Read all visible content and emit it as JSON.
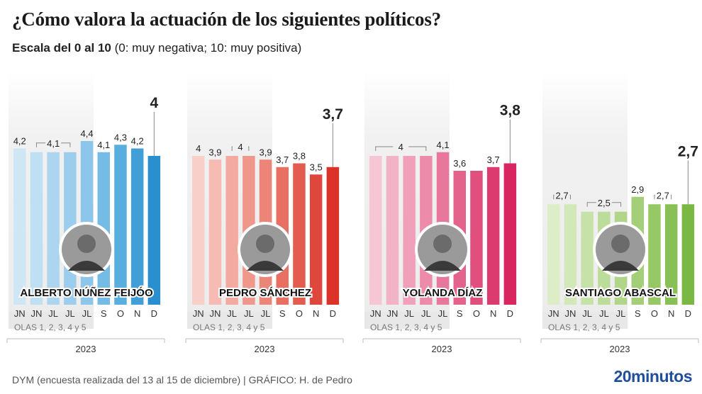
{
  "header": {
    "title": "¿Cómo valora la actuación de los siguientes políticos?",
    "subtitle_bold": "Escala del 0 al 10",
    "subtitle_rest": " (0: muy negativa; 10: muy positiva)"
  },
  "footer": {
    "source": "DYM (encuesta realizada del 13 al 15 de diciembre)   |  GRÁFICO: H. de Pedro",
    "brand": "20minutos"
  },
  "chart_data": [
    {
      "type": "bar",
      "name": "ALBERTO NÚÑEZ FEIJÓO",
      "categories": [
        "JN",
        "JN",
        "JL",
        "JL",
        "JL",
        "S",
        "O",
        "N",
        "D"
      ],
      "values": [
        4.2,
        4.1,
        4.1,
        4.1,
        4.4,
        4.1,
        4.3,
        4.2,
        4.0
      ],
      "labels": [
        {
          "text": "4,2",
          "from": 0,
          "to": 0
        },
        {
          "text": "4,1",
          "from": 1,
          "to": 3
        },
        {
          "text": "4,4",
          "from": 4,
          "to": 4
        },
        {
          "text": "4,1",
          "from": 5,
          "to": 5
        },
        {
          "text": "4,3",
          "from": 6,
          "to": 6
        },
        {
          "text": "4,2",
          "from": 7,
          "to": 7
        }
      ],
      "latest_label": "4",
      "waves_label": "OLAS 1, 2, 3, 4 y 5",
      "year": "2023",
      "colors": [
        "#cfe6f5",
        "#bfdff2",
        "#acd6ef",
        "#9ccdec",
        "#8cc6ea",
        "#74bce6",
        "#59aee0",
        "#419fd8",
        "#2a8fcf"
      ],
      "ylim": [
        0,
        10
      ]
    },
    {
      "type": "bar",
      "name": "PEDRO SÁNCHEZ",
      "categories": [
        "JN",
        "JN",
        "JL",
        "JL",
        "JL",
        "S",
        "O",
        "N",
        "D"
      ],
      "values": [
        4.0,
        3.9,
        4.0,
        4.0,
        3.9,
        3.7,
        3.8,
        3.5,
        3.7
      ],
      "labels": [
        {
          "text": "4",
          "from": 0,
          "to": 0
        },
        {
          "text": "3,9",
          "from": 1,
          "to": 1
        },
        {
          "text": "4",
          "from": 2,
          "to": 3
        },
        {
          "text": "3,9",
          "from": 4,
          "to": 4
        },
        {
          "text": "3,7",
          "from": 5,
          "to": 5
        },
        {
          "text": "3,8",
          "from": 6,
          "to": 6
        },
        {
          "text": "3,5",
          "from": 7,
          "to": 7
        }
      ],
      "latest_label": "3,7",
      "waves_label": "OLAS 1, 2, 3, 4 y 5",
      "year": "2023",
      "colors": [
        "#f8cfc9",
        "#f6bcb4",
        "#f3aaa0",
        "#f0978c",
        "#ec8577",
        "#e87062",
        "#e45b4f",
        "#e0473c",
        "#db3229"
      ],
      "ylim": [
        0,
        10
      ]
    },
    {
      "type": "bar",
      "name": "YOLANDA DÍAZ",
      "categories": [
        "JN",
        "JN",
        "JL",
        "JL",
        "JL",
        "S",
        "O",
        "N",
        "D"
      ],
      "values": [
        4.0,
        4.0,
        4.0,
        4.0,
        4.1,
        3.6,
        3.6,
        3.7,
        3.8
      ],
      "labels": [
        {
          "text": "4",
          "from": 0,
          "to": 3
        },
        {
          "text": "4,1",
          "from": 4,
          "to": 4
        },
        {
          "text": "3,6",
          "from": 5,
          "to": 5
        },
        {
          "text": "0",
          "from": 6,
          "to": 6,
          "hidden": true
        },
        {
          "text": "3,7",
          "from": 7,
          "to": 7
        }
      ],
      "latest_label": "3,8",
      "waves_label": "OLAS 1, 2, 3, 4 y 5",
      "year": "2023",
      "colors": [
        "#f6c6d5",
        "#f3b3c7",
        "#f0a0b8",
        "#ec8caa",
        "#e8789b",
        "#e4638c",
        "#e04f7e",
        "#dc3b6f",
        "#d82760"
      ],
      "ylim": [
        0,
        10
      ]
    },
    {
      "type": "bar",
      "name": "SANTIAGO ABASCAL",
      "categories": [
        "JN",
        "JN",
        "JL",
        "JL",
        "JL",
        "S",
        "O",
        "N",
        "D"
      ],
      "values": [
        2.7,
        2.7,
        2.5,
        2.5,
        2.5,
        2.9,
        2.7,
        2.7,
        2.7
      ],
      "labels": [
        {
          "text": "2,7",
          "from": 0,
          "to": 1
        },
        {
          "text": "2,5",
          "from": 2,
          "to": 4
        },
        {
          "text": "2,9",
          "from": 5,
          "to": 5
        },
        {
          "text": "2,7",
          "from": 6,
          "to": 7
        }
      ],
      "latest_label": "2,7",
      "waves_label": "OLAS 1, 2, 3, 4 y 5",
      "year": "2023",
      "colors": [
        "#dcedc7",
        "#d2e8b8",
        "#c7e2a9",
        "#bcdc99",
        "#b1d68a",
        "#a4cf78",
        "#96c866",
        "#88c055",
        "#79b843"
      ],
      "ylim": [
        0,
        10
      ]
    }
  ]
}
